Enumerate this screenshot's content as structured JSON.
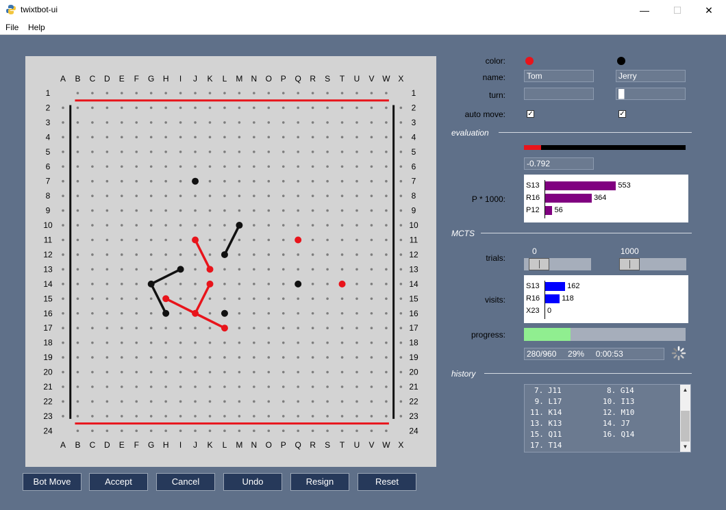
{
  "window": {
    "title": "twixtbot-ui",
    "minimize": "—",
    "maximize": "☐",
    "close": "✕"
  },
  "menu": [
    "File",
    "Help"
  ],
  "board": {
    "columns": [
      "A",
      "B",
      "C",
      "D",
      "E",
      "F",
      "G",
      "H",
      "I",
      "J",
      "K",
      "L",
      "M",
      "N",
      "O",
      "P",
      "Q",
      "R",
      "S",
      "T",
      "U",
      "V",
      "W",
      "X"
    ],
    "rows": 24,
    "red_pegs": [
      "J11",
      "K13",
      "K14",
      "H15",
      "J16",
      "L17",
      "Q11",
      "T14"
    ],
    "black_pegs": [
      "J7",
      "M10",
      "L12",
      "I13",
      "G14",
      "H16",
      "L16",
      "Q14"
    ],
    "red_links": [
      [
        "J11",
        "K13"
      ],
      [
        "K14",
        "J16"
      ],
      [
        "H15",
        "J16"
      ],
      [
        "J16",
        "L17"
      ]
    ],
    "black_links": [
      [
        "M10",
        "L12"
      ],
      [
        "I13",
        "G14"
      ],
      [
        "G14",
        "H16"
      ]
    ],
    "colors": {
      "red": "#e8141b",
      "black": "#111111",
      "board": "#d3d3d3",
      "hole": "#7d7d7d"
    }
  },
  "buttons": [
    "Bot Move",
    "Accept",
    "Cancel",
    "Undo",
    "Resign",
    "Reset"
  ],
  "players": {
    "labels": {
      "color": "color:",
      "name": "name:",
      "turn": "turn:",
      "auto_move": "auto move:"
    },
    "p1": {
      "name": "Tom",
      "color": "#e8141b",
      "auto_move": true,
      "turn": ""
    },
    "p2": {
      "name": "Jerry",
      "color": "#000000",
      "auto_move": true,
      "turn": "█"
    }
  },
  "evaluation": {
    "section": "evaluation",
    "value": "-0.792",
    "bar_fraction": 0.104,
    "p_label": "P * 1000:",
    "p_bars": [
      {
        "move": "S13",
        "value": 553
      },
      {
        "move": "R16",
        "value": 364
      },
      {
        "move": "P12",
        "value": 56
      }
    ]
  },
  "mcts": {
    "section": "MCTS",
    "trials_label": "trials:",
    "slider1": {
      "label": "0",
      "fraction": 0.1
    },
    "slider2": {
      "label": "1000",
      "fraction": 0.0
    },
    "visits_label": "visits:",
    "visits": [
      {
        "move": "S13",
        "value": 162
      },
      {
        "move": "R16",
        "value": 118
      },
      {
        "move": "X23",
        "value": 0
      }
    ],
    "progress_label": "progress:",
    "progress_fraction": 0.29,
    "progress_text": "280/960     29%     0:00:53"
  },
  "history": {
    "section": "history",
    "lines": [
      "7. J11          8. G14",
      " 9. L17         10. I13",
      "11. K14         12. M10",
      "13. K13         14. J7",
      "15. Q11         16. Q14",
      "17. T14"
    ]
  }
}
